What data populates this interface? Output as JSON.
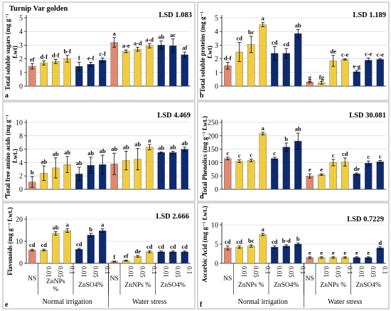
{
  "figure": {
    "colors": {
      "control": "#e08870",
      "nano": "#f0cc40",
      "sulfate": "#0d2b6e",
      "border": "#9a9a9a"
    },
    "bar_groups": [
      "control",
      "nano",
      "nano",
      "nano",
      "sulfate",
      "sulfate",
      "sulfate",
      "control",
      "nano",
      "nano",
      "nano",
      "sulfate",
      "sulfate",
      "sulfate"
    ],
    "x_axis": {
      "treatment_ticks": [
        "NS",
        "0.01",
        "0.05",
        "0.1",
        "0.01",
        "0.05",
        "0.1",
        "NS",
        "0.01",
        "0.05",
        "0.1",
        "0.01",
        "0.05",
        "0.1"
      ],
      "group_labels": [
        "ZnNPs %",
        "ZnSO4%",
        "ZnNPs %",
        "ZnSO4%"
      ],
      "group_labels_wrapped": [
        "ZnNPs",
        "%"
      ],
      "condition_labels": [
        "Normal irrigation",
        "Water stress"
      ]
    }
  },
  "chart_data": [
    {
      "panel": "a",
      "type": "bar",
      "title": "Turnip Var golden",
      "lsd": "LSD 1.083",
      "ylabel_lines": [
        "Total soluble sugars (mg g⁻¹",
        "f.wt)"
      ],
      "ylim": [
        0,
        5
      ],
      "yticks": [
        "0",
        "1",
        "2",
        "3",
        "4",
        "5"
      ],
      "values": [
        1.45,
        1.7,
        1.8,
        2.0,
        1.45,
        1.6,
        1.9,
        3.2,
        2.55,
        2.7,
        2.95,
        3.0,
        2.95,
        2.3
      ],
      "errors": [
        0.2,
        0.15,
        0.15,
        0.25,
        0.3,
        0.15,
        0.15,
        0.35,
        0.1,
        0.15,
        0.15,
        0.3,
        0.5,
        0.2
      ],
      "letters": [
        "ef",
        "d-f",
        "d-f",
        "b-f",
        "f",
        "e-f",
        "c-f",
        "a",
        "a-e",
        "a-d",
        "a-d",
        "ab",
        "ac",
        "af"
      ]
    },
    {
      "panel": "b",
      "type": "bar",
      "lsd": "LSD 1.189",
      "ylabel_lines": [
        "Total soluble proteins (mg g⁻¹",
        "f.wt)"
      ],
      "ylim": [
        0,
        5
      ],
      "yticks": [
        "0",
        "1",
        "2",
        "3",
        "4",
        "5"
      ],
      "values": [
        1.5,
        2.5,
        3.05,
        4.5,
        2.4,
        2.4,
        3.85,
        0.3,
        0.25,
        1.85,
        1.95,
        1.05,
        1.9,
        1.95
      ],
      "errors": [
        0.25,
        0.7,
        0.6,
        0.15,
        0.5,
        0.35,
        0.3,
        0.05,
        0.1,
        0.4,
        0.05,
        0.1,
        0.15,
        0.05
      ],
      "letters": [
        "d-f",
        "cd",
        "bc",
        "a",
        "cd",
        "cd",
        "ab",
        "g",
        "fg",
        "de",
        "c-e",
        "e-g",
        "c-e",
        "c-e"
      ]
    },
    {
      "panel": "c",
      "type": "bar",
      "lsd": "LSD 4.469",
      "ylabel_lines": [
        "Total free amino acids (mg g⁻¹",
        "f.wt.)"
      ],
      "ylim": [
        0,
        10
      ],
      "yticks": [
        "0",
        "2",
        "4",
        "6",
        "8",
        "10"
      ],
      "values": [
        1.1,
        2.4,
        3.2,
        3.7,
        2.3,
        3.6,
        3.7,
        3.8,
        4.3,
        4.5,
        6.3,
        5.5,
        5.5,
        6.0
      ],
      "errors": [
        0.8,
        1.1,
        1.5,
        1.2,
        1.0,
        1.2,
        1.4,
        1.6,
        1.4,
        1.6,
        0.4,
        0.1,
        0.2,
        0.3
      ],
      "letters": [
        "b",
        "ab",
        "ab",
        "ab",
        "ab",
        "ab",
        "ab",
        "ab",
        "ab",
        "ab",
        "a",
        "ab",
        "ab",
        "ab"
      ]
    },
    {
      "panel": "d",
      "type": "bar",
      "lsd": "LSD 30.081",
      "ylabel_lines": [
        "Total Phenolics (mg g⁻¹ f.wt.)"
      ],
      "ylim": [
        0,
        250
      ],
      "yticks": [
        "0",
        "50",
        "100",
        "150",
        "200",
        "250"
      ],
      "values": [
        115,
        105,
        108,
        208,
        115,
        158,
        180,
        50,
        55,
        100,
        102,
        58,
        98,
        103
      ],
      "errors": [
        5,
        5,
        5,
        5,
        5,
        15,
        30,
        8,
        3,
        12,
        15,
        3,
        8,
        5
      ],
      "letters": [
        "c",
        "c",
        "c",
        "a",
        "c",
        "b",
        "ab",
        "e",
        "e",
        "c",
        "cd",
        "de",
        "c",
        "c"
      ]
    },
    {
      "panel": "e",
      "type": "bar",
      "lsd": "LSD 2.666",
      "ylabel_lines": [
        "Flavonoids (mg g⁻¹ f.wt.)"
      ],
      "ylim": [
        0,
        25
      ],
      "yticks": [
        "0",
        "10",
        "20"
      ],
      "values": [
        7.5,
        7.5,
        17,
        18.5,
        8,
        16,
        18.5,
        1,
        1.5,
        4,
        6.5,
        6.5,
        6.5,
        6.5
      ],
      "errors": [
        0.5,
        0.5,
        1.0,
        1.0,
        0.5,
        1.0,
        1.0,
        0.3,
        0.3,
        0.5,
        0.5,
        0.5,
        0.5,
        0.5
      ],
      "letters": [
        "cd",
        "cd",
        "ab",
        "a",
        "cd",
        "b",
        "a",
        "f",
        "ef",
        "de",
        "cd",
        "cd",
        "cd",
        "cd"
      ]
    },
    {
      "panel": "f",
      "type": "bar",
      "lsd": "LSD 0.7229",
      "ylabel_lines": [
        "Ascorbic Acid (mg g⁻¹ f.wt.)"
      ],
      "ylim": [
        0,
        10
      ],
      "yticks": [
        "0",
        "5",
        "10"
      ],
      "values": [
        4,
        4.2,
        4.5,
        7.5,
        4.2,
        4.5,
        5,
        1.5,
        1.5,
        1.5,
        1.5,
        1.5,
        1.5,
        4
      ],
      "errors": [
        0.5,
        0.3,
        0.3,
        0.3,
        0.3,
        0.3,
        0.3,
        0.2,
        0.2,
        0.2,
        0.2,
        0.2,
        0.2,
        0.3
      ],
      "letters": [
        "cd",
        "cd",
        "bc",
        "a",
        "cd",
        "b-d",
        "b",
        "e",
        "e",
        "e",
        "e",
        "e",
        "e",
        "d"
      ]
    }
  ]
}
